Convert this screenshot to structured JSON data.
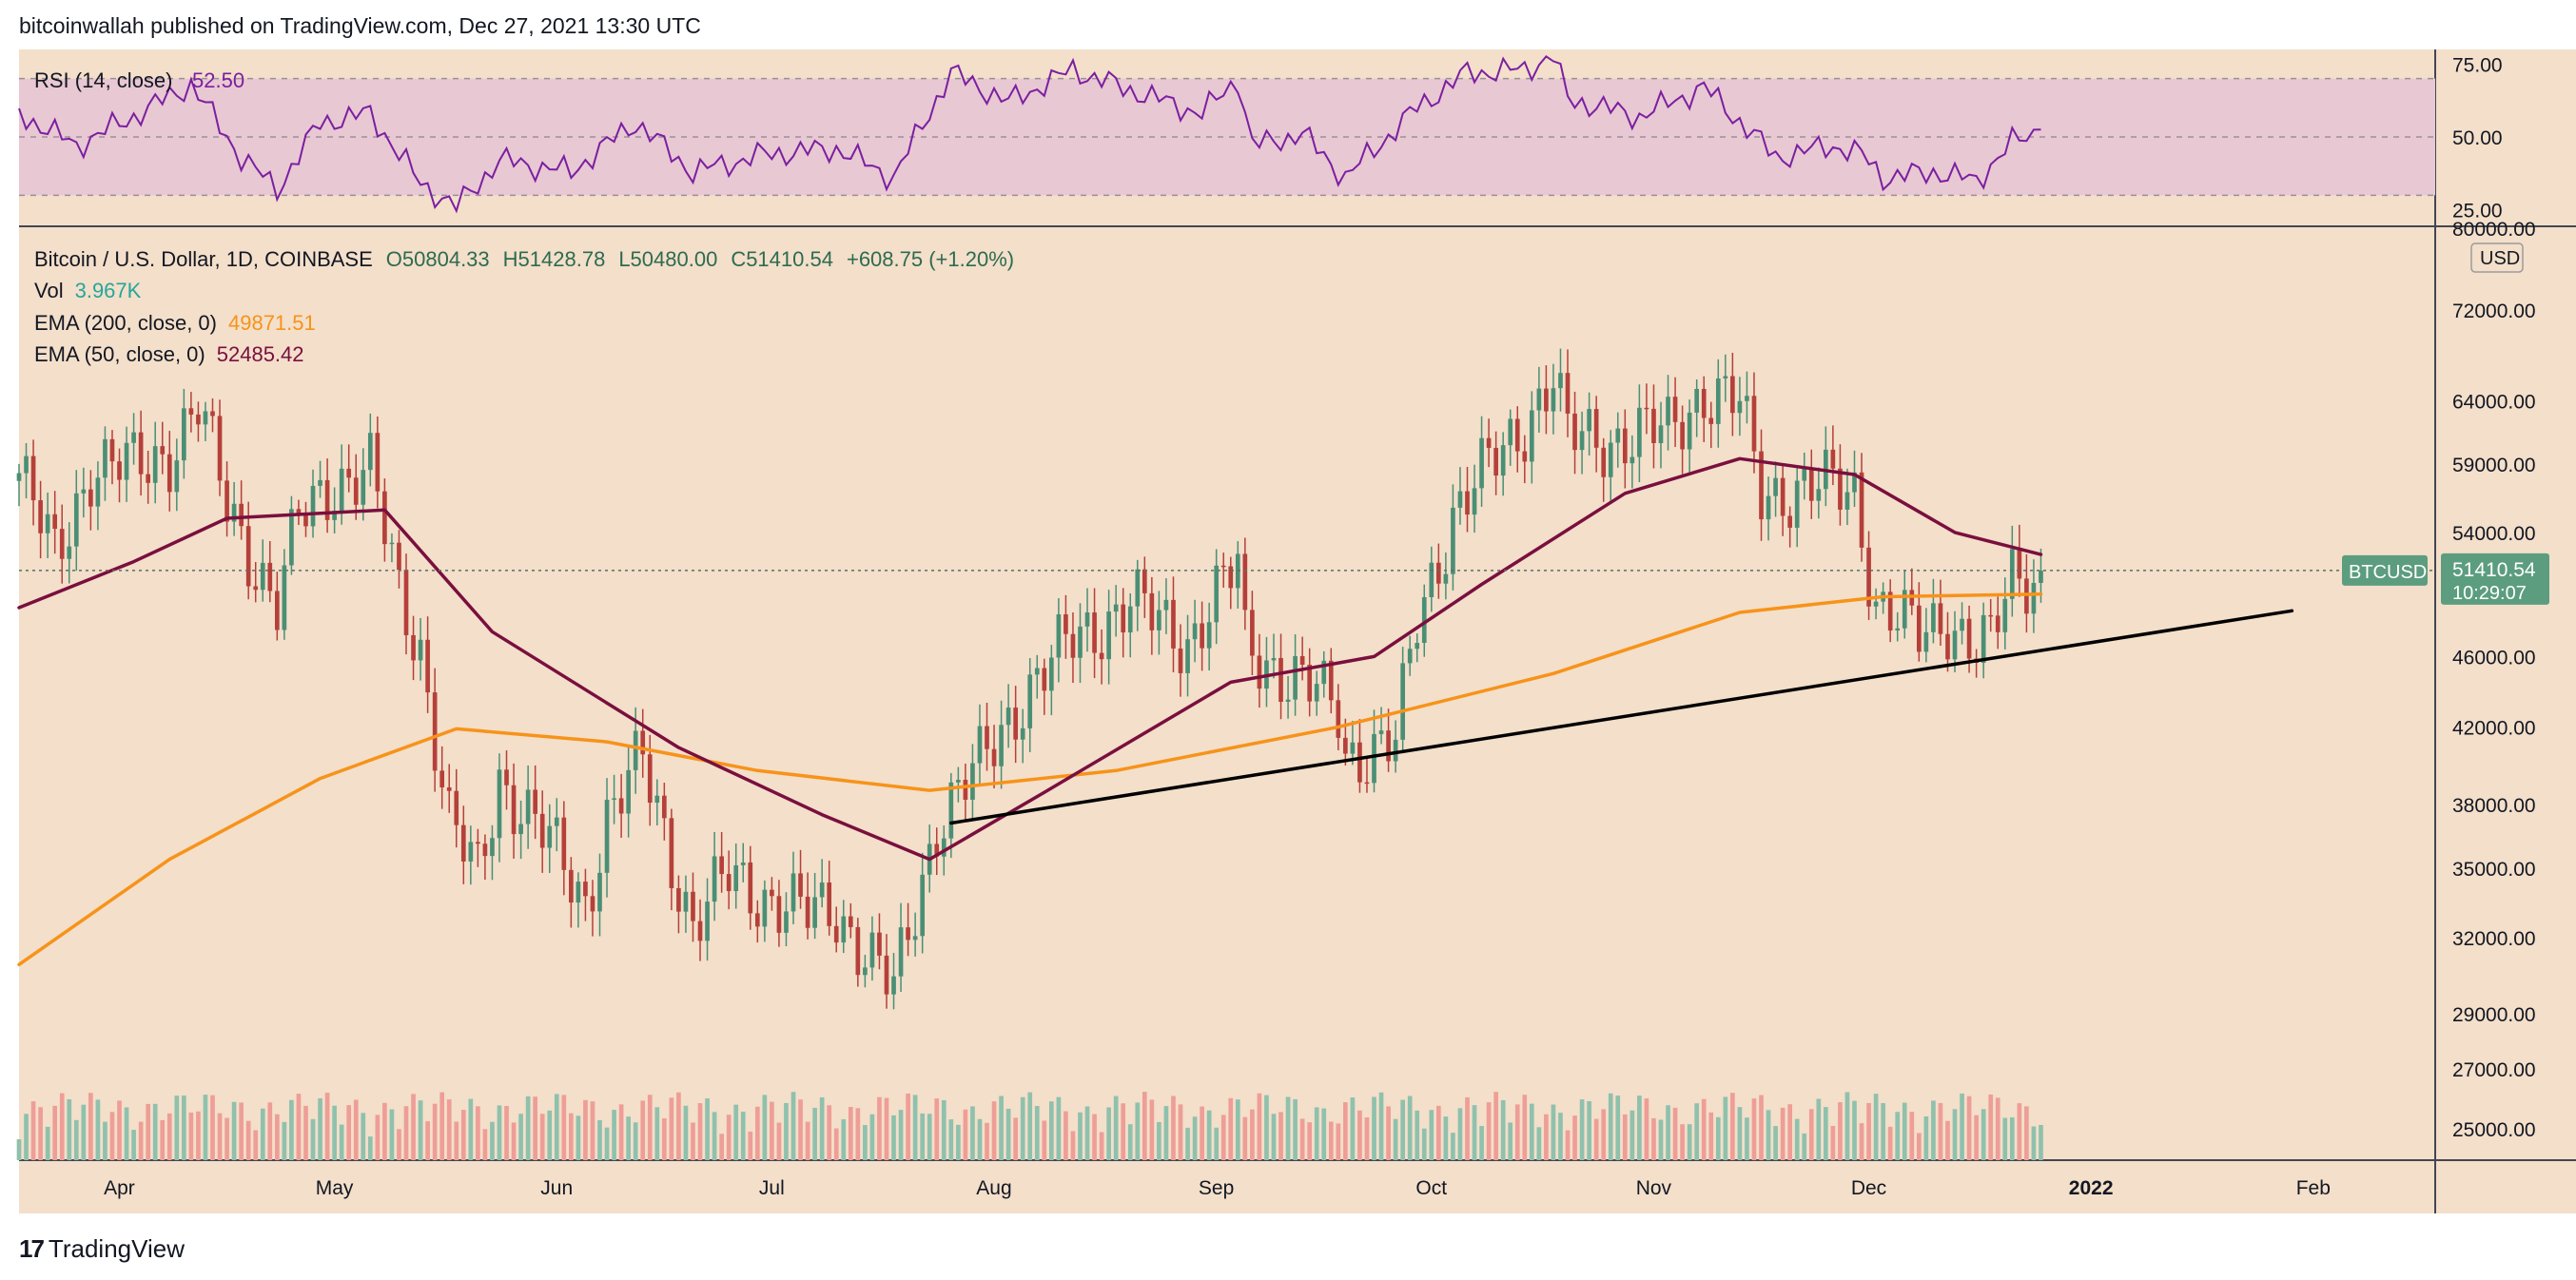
{
  "header": {
    "published": "bitcoinwallah published on TradingView.com, Dec 27, 2021 13:30 UTC"
  },
  "footer": {
    "brand": "TradingView"
  },
  "colors": {
    "background": "#f3dfca",
    "rsi_band": "#e8c8d2",
    "rsi_line": "#7b1fa2",
    "up": "#4a8f75",
    "down": "#b5403a",
    "vol_up": "#8fc1ad",
    "vol_down": "#ee9e97",
    "ema200": "#f7931a",
    "ema50": "#7a0f3e",
    "trendline": "#000000",
    "price_tag": "#5c9d7f"
  },
  "rsi_panel": {
    "label": "RSI (14, close)",
    "value": "52.50",
    "ticks": [
      "75.00",
      "50.00",
      "25.00"
    ]
  },
  "legend": {
    "symbol": "Bitcoin / U.S. Dollar, 1D, COINBASE",
    "open": "O50804.33",
    "high": "H51428.78",
    "low": "L50480.00",
    "close": "C51410.54",
    "change": "+608.75 (+1.20%)",
    "vol_label": "Vol",
    "vol_value": "3.967K",
    "ema200_label": "EMA (200, close, 0)",
    "ema200_value": "49871.51",
    "ema50_label": "EMA (50, close, 0)",
    "ema50_value": "52485.42"
  },
  "price_axis": {
    "currency": "USD",
    "ticks": [
      "80000.00",
      "72000.00",
      "64000.00",
      "59000.00",
      "54000.00",
      "46000.00",
      "42000.00",
      "38000.00",
      "35000.00",
      "32000.00",
      "29000.00",
      "27000.00",
      "25000.00"
    ],
    "symbol_tag": "BTCUSD",
    "last_price": "51410.54",
    "countdown": "10:29:07"
  },
  "time_axis": {
    "labels": [
      "Apr",
      "May",
      "Jun",
      "Jul",
      "Aug",
      "Sep",
      "Oct",
      "Nov",
      "Dec",
      "2022",
      "Feb"
    ]
  },
  "chart_data": {
    "type": "candlestick",
    "symbol": "BTCUSD",
    "interval": "1D",
    "exchange": "COINBASE",
    "y_scale": "log",
    "ylim": [
      24000,
      80000
    ],
    "xlim": [
      "2021-03-20",
      "2022-02-20"
    ],
    "rsi_ylim": [
      20,
      80
    ],
    "price_path": [
      [
        "2021-03-20",
        58300
      ],
      [
        "2021-03-25",
        52300
      ],
      [
        "2021-03-30",
        58800
      ],
      [
        "2021-04-05",
        58700
      ],
      [
        "2021-04-10",
        60000
      ],
      [
        "2021-04-14",
        63500
      ],
      [
        "2021-04-18",
        56000
      ],
      [
        "2021-04-25",
        49100
      ],
      [
        "2021-04-28",
        54800
      ],
      [
        "2021-05-03",
        57800
      ],
      [
        "2021-05-08",
        58500
      ],
      [
        "2021-05-12",
        49800
      ],
      [
        "2021-05-15",
        46600
      ],
      [
        "2021-05-19",
        37100
      ],
      [
        "2021-05-23",
        34600
      ],
      [
        "2021-05-26",
        39400
      ],
      [
        "2021-06-01",
        36600
      ],
      [
        "2021-06-07",
        33500
      ],
      [
        "2021-06-10",
        37400
      ],
      [
        "2021-06-15",
        40200
      ],
      [
        "2021-06-22",
        32500
      ],
      [
        "2021-06-27",
        34600
      ],
      [
        "2021-07-02",
        33800
      ],
      [
        "2021-07-08",
        32900
      ],
      [
        "2021-07-12",
        33200
      ],
      [
        "2021-07-20",
        29800
      ],
      [
        "2021-07-26",
        37200
      ],
      [
        "2021-08-01",
        39900
      ],
      [
        "2021-08-07",
        43800
      ],
      [
        "2021-08-14",
        47000
      ],
      [
        "2021-08-22",
        49300
      ],
      [
        "2021-08-30",
        47000
      ],
      [
        "2021-09-06",
        51700
      ],
      [
        "2021-09-07",
        46800
      ],
      [
        "2021-09-13",
        44900
      ],
      [
        "2021-09-20",
        43000
      ],
      [
        "2021-09-21",
        40600
      ],
      [
        "2021-09-28",
        41000
      ],
      [
        "2021-10-01",
        48200
      ],
      [
        "2021-10-06",
        55300
      ],
      [
        "2021-10-15",
        61500
      ],
      [
        "2021-10-20",
        66000
      ],
      [
        "2021-10-22",
        61000
      ],
      [
        "2021-10-28",
        61000
      ],
      [
        "2021-11-05",
        61500
      ],
      [
        "2021-11-10",
        64900
      ],
      [
        "2021-11-15",
        63600
      ],
      [
        "2021-11-18",
        56900
      ],
      [
        "2021-11-25",
        57200
      ],
      [
        "2021-12-01",
        57000
      ],
      [
        "2021-12-04",
        49400
      ],
      [
        "2021-12-10",
        47100
      ],
      [
        "2021-12-14",
        48400
      ],
      [
        "2021-12-18",
        46700
      ],
      [
        "2021-12-20",
        46700
      ],
      [
        "2021-12-23",
        50800
      ],
      [
        "2021-12-27",
        51410
      ]
    ],
    "series": [
      {
        "name": "EMA (200, close, 0)",
        "values": [
          [
            "2021-03-20",
            30900
          ],
          [
            "2021-04-10",
            35400
          ],
          [
            "2021-05-01",
            39300
          ],
          [
            "2021-05-20",
            41900
          ],
          [
            "2021-06-10",
            41200
          ],
          [
            "2021-07-01",
            39700
          ],
          [
            "2021-07-25",
            38700
          ],
          [
            "2021-08-20",
            39700
          ],
          [
            "2021-09-20",
            42000
          ],
          [
            "2021-10-20",
            45000
          ],
          [
            "2021-11-15",
            48700
          ],
          [
            "2021-12-05",
            49700
          ],
          [
            "2021-12-27",
            49871
          ]
        ]
      },
      {
        "name": "EMA (50, close, 0)",
        "values": [
          [
            "2021-03-20",
            49000
          ],
          [
            "2021-04-05",
            52000
          ],
          [
            "2021-04-18",
            55000
          ],
          [
            "2021-05-10",
            55600
          ],
          [
            "2021-05-25",
            47500
          ],
          [
            "2021-06-20",
            40900
          ],
          [
            "2021-07-10",
            37500
          ],
          [
            "2021-07-25",
            35400
          ],
          [
            "2021-08-10",
            38600
          ],
          [
            "2021-09-05",
            44500
          ],
          [
            "2021-09-25",
            46000
          ],
          [
            "2021-10-10",
            50500
          ],
          [
            "2021-10-30",
            56800
          ],
          [
            "2021-11-15",
            59400
          ],
          [
            "2021-12-01",
            58200
          ],
          [
            "2021-12-15",
            54000
          ],
          [
            "2021-12-27",
            52485
          ]
        ]
      },
      {
        "name": "Trendline",
        "values": [
          [
            "2021-07-28",
            37100
          ],
          [
            "2022-01-31",
            48800
          ]
        ]
      }
    ],
    "rsi": [
      [
        "2021-03-20",
        58
      ],
      [
        "2021-03-28",
        47
      ],
      [
        "2021-04-05",
        57
      ],
      [
        "2021-04-13",
        68
      ],
      [
        "2021-04-20",
        43
      ],
      [
        "2021-04-25",
        32
      ],
      [
        "2021-05-01",
        55
      ],
      [
        "2021-05-08",
        58
      ],
      [
        "2021-05-15",
        34
      ],
      [
        "2021-05-20",
        26
      ],
      [
        "2021-05-26",
        42
      ],
      [
        "2021-06-05",
        38
      ],
      [
        "2021-06-14",
        55
      ],
      [
        "2021-06-22",
        38
      ],
      [
        "2021-07-02",
        44
      ],
      [
        "2021-07-12",
        46
      ],
      [
        "2021-07-20",
        36
      ],
      [
        "2021-07-28",
        72
      ],
      [
        "2021-08-05",
        62
      ],
      [
        "2021-08-14",
        73
      ],
      [
        "2021-08-22",
        66
      ],
      [
        "2021-09-01",
        58
      ],
      [
        "2021-09-06",
        70
      ],
      [
        "2021-09-08",
        47
      ],
      [
        "2021-09-15",
        51
      ],
      [
        "2021-09-21",
        36
      ],
      [
        "2021-10-01",
        60
      ],
      [
        "2021-10-08",
        72
      ],
      [
        "2021-10-16",
        73
      ],
      [
        "2021-10-20",
        78
      ],
      [
        "2021-10-22",
        63
      ],
      [
        "2021-11-01",
        57
      ],
      [
        "2021-11-10",
        67
      ],
      [
        "2021-11-16",
        53
      ],
      [
        "2021-11-20",
        43
      ],
      [
        "2021-11-28",
        47
      ],
      [
        "2021-12-02",
        44
      ],
      [
        "2021-12-05",
        36
      ],
      [
        "2021-12-12",
        38
      ],
      [
        "2021-12-18",
        35
      ],
      [
        "2021-12-23",
        48
      ],
      [
        "2021-12-27",
        52.5
      ]
    ]
  }
}
